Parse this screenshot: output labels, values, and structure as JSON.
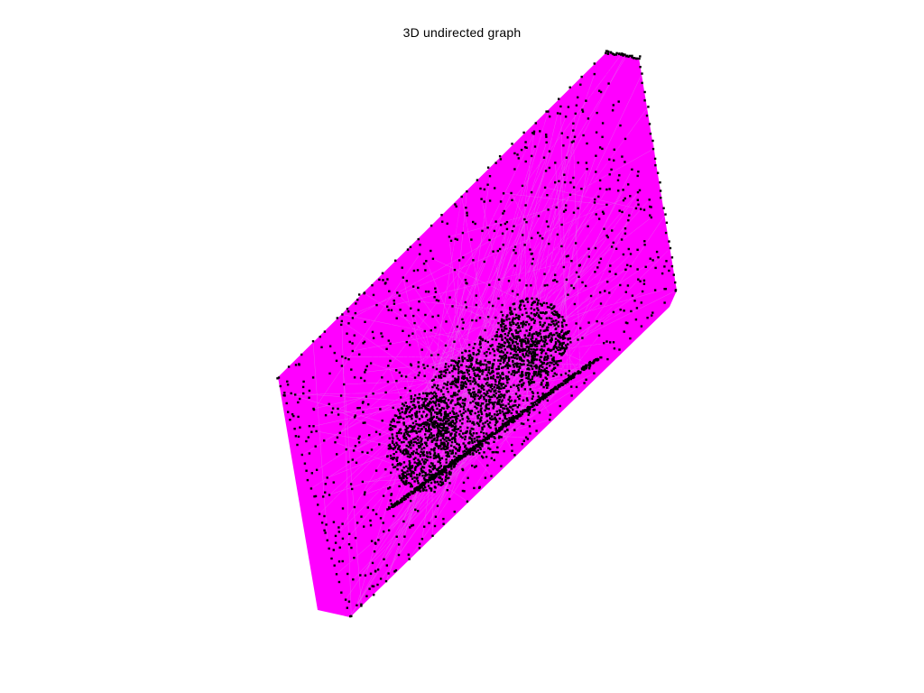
{
  "figure": {
    "title": "3D undirected graph"
  },
  "graph": {
    "type": "graph-3d",
    "directed": false,
    "edge_color": "#ff00ff",
    "node_color": "#000000",
    "background": "#ffffff"
  }
}
